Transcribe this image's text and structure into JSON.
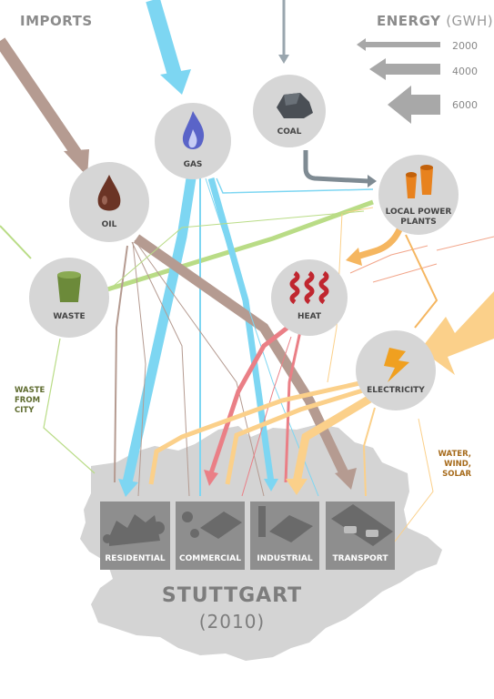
{
  "header": {
    "imports": "IMPORTS",
    "energy": "ENERGY",
    "energy_unit": "(GWH)"
  },
  "legend": {
    "values": [
      "2000",
      "4000",
      "6000"
    ],
    "arrow_color": "#a8a8a8"
  },
  "nodes": {
    "coal": "COAL",
    "gas": "GAS",
    "oil": "OIL",
    "local_power": [
      "LOCAL POWER",
      "PLANTS"
    ],
    "waste": "WASTE",
    "heat": "HEAT",
    "electricity": "Electricity"
  },
  "side_labels": {
    "waste_from_city": [
      "WASTE",
      "FROM",
      "CITY"
    ],
    "renewables": [
      "WATER,",
      "WIND,",
      "SOLAR"
    ]
  },
  "sectors": [
    "RESIDENTIAL",
    "COMMERCIAL",
    "INDUSTRIAL",
    "TRANSPORT"
  ],
  "city": {
    "name": "STUTTGART",
    "year": "(2010)"
  },
  "colors": {
    "gas": "#7dd6f2",
    "oil": "#b59b91",
    "coal": "#9aa6ae",
    "waste": "#b9dc86",
    "heat": "#ea7f86",
    "electricity": "#fbd08a",
    "local_power": "#f5b660",
    "node_fill": "#d6d6d6",
    "map_fill": "#d4d4d4",
    "sector_fill": "#8e8e8e"
  },
  "icons": [
    "coal-icon",
    "gas-flame-icon",
    "oil-drop-icon",
    "power-plant-icon",
    "waste-bin-icon",
    "heat-icon",
    "lightning-icon"
  ]
}
